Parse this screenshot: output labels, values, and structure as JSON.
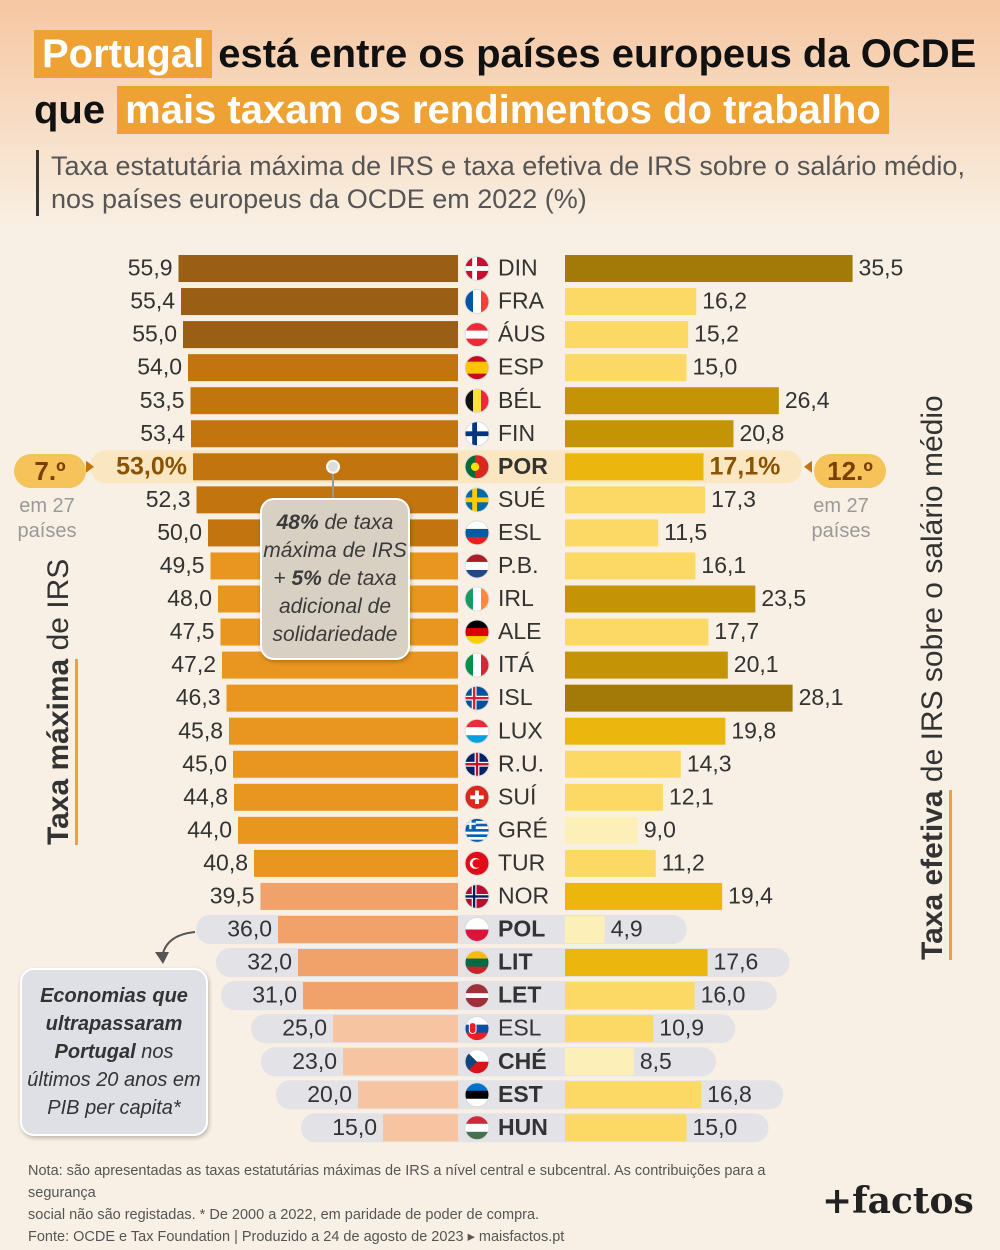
{
  "header": {
    "title_highlight_1": "Portugal",
    "title_rest_1": "está entre os países europeus da OCDE",
    "title_start_2": "que",
    "title_highlight_2": "mais taxam os rendimentos do trabalho",
    "subtitle_line1": "Taxa estatutária máxima de IRS e taxa efetiva de IRS sobre o salário médio,",
    "subtitle_line2": "nos países europeus da OCDE em 2022 (%)"
  },
  "axis_labels": {
    "left_bold": "Taxa máxima",
    "left_rest": " de IRS",
    "right_bold": "Taxa efetiva",
    "right_rest": " de IRS sobre o salário médio"
  },
  "rank": {
    "left": "7.º",
    "right": "12.º",
    "caption_line1": "em 27",
    "caption_line2": "países"
  },
  "annotation": {
    "bold1": "48%",
    "text1": " de taxa máxima de IRS + ",
    "bold2": "5%",
    "text2": " de taxa adicional de solidariedade"
  },
  "callout": {
    "bold": "Economias que ultrapassaram Portugal",
    "rest": " nos últimos 20 anos em PIB per capita*"
  },
  "footnote": {
    "line1": "Nota: são apresentadas as taxas estatutárias máximas de IRS a nível central e subcentral. As contribuições para a segurança",
    "line2": "social não são registadas. * De 2000 a 2022, em paridade de poder de compra.",
    "line3": "Fonte: OCDE e Tax Foundation  |  Produzido a 24 de agosto de 2023  ▸ maisfactos.pt"
  },
  "brand": "+factos",
  "colors": {
    "accent": "#eea233",
    "left_dark": "#9a5e14",
    "left_mid": "#c2750f",
    "left_orange": "#e8961f",
    "left_salmon": "#f0a26a",
    "left_light": "#f6c4a0",
    "right_dark": "#a37a08",
    "right_mid": "#c49306",
    "right_gold": "#ebb70e",
    "right_yellow": "#fbd964",
    "right_pale": "#fdefb8",
    "highlight_row": "#fbe6c2",
    "grey_pill": "#e2e2e7"
  },
  "chart_data": {
    "type": "bar",
    "orientation": "horizontal",
    "layout": "back-to-back",
    "categories": [
      "DIN",
      "FRA",
      "ÁUS",
      "ESP",
      "BÉL",
      "FIN",
      "POR",
      "SUÉ",
      "ESL",
      "P.B.",
      "IRL",
      "ALE",
      "ITÁ",
      "ISL",
      "LUX",
      "R.U.",
      "SUÍ",
      "GRÉ",
      "TUR",
      "NOR",
      "POL",
      "LIT",
      "LET",
      "ESL",
      "CHÉ",
      "EST",
      "HUN"
    ],
    "flags": [
      "denmark-flag-icon",
      "france-flag-icon",
      "austria-flag-icon",
      "spain-flag-icon",
      "belgium-flag-icon",
      "finland-flag-icon",
      "portugal-flag-icon",
      "sweden-flag-icon",
      "slovenia-flag-icon",
      "netherlands-flag-icon",
      "ireland-flag-icon",
      "germany-flag-icon",
      "italy-flag-icon",
      "iceland-flag-icon",
      "luxembourg-flag-icon",
      "uk-flag-icon",
      "switzerland-flag-icon",
      "greece-flag-icon",
      "turkey-flag-icon",
      "norway-flag-icon",
      "poland-flag-icon",
      "lithuania-flag-icon",
      "latvia-flag-icon",
      "slovakia-flag-icon",
      "czechia-flag-icon",
      "estonia-flag-icon",
      "hungary-flag-icon"
    ],
    "series": [
      {
        "name": "Taxa máxima de IRS",
        "values": [
          55.9,
          55.4,
          55.0,
          54.0,
          53.5,
          53.4,
          53.0,
          52.3,
          50.0,
          49.5,
          48.0,
          47.5,
          47.2,
          46.3,
          45.8,
          45.0,
          44.8,
          44.0,
          40.8,
          39.5,
          36.0,
          32.0,
          31.0,
          25.0,
          23.0,
          20.0,
          15.0
        ],
        "labels": [
          "55,9",
          "55,4",
          "55,0",
          "54,0",
          "53,5",
          "53,4",
          "53,0%",
          "52,3",
          "50,0",
          "49,5",
          "48,0",
          "47,5",
          "47,2",
          "46,3",
          "45,8",
          "45,0",
          "44,8",
          "44,0",
          "40,8",
          "39,5",
          "36,0",
          "32,0",
          "31,0",
          "25,0",
          "23,0",
          "20,0",
          "15,0"
        ],
        "colors": [
          "#9a5e14",
          "#9a5e14",
          "#9a5e14",
          "#c2750f",
          "#c2750f",
          "#c2750f",
          "#c2750f",
          "#c2750f",
          "#c2750f",
          "#e8961f",
          "#e8961f",
          "#e8961f",
          "#e8961f",
          "#e8961f",
          "#e8961f",
          "#e8961f",
          "#e8961f",
          "#e8961f",
          "#e8961f",
          "#f0a26a",
          "#f0a26a",
          "#f0a26a",
          "#f0a26a",
          "#f6c4a0",
          "#f6c4a0",
          "#f6c4a0",
          "#f6c4a0"
        ]
      },
      {
        "name": "Taxa efetiva de IRS sobre o salário médio",
        "values": [
          35.5,
          16.2,
          15.2,
          15.0,
          26.4,
          20.8,
          17.1,
          17.3,
          11.5,
          16.1,
          23.5,
          17.7,
          20.1,
          28.1,
          19.8,
          14.3,
          12.1,
          9.0,
          11.2,
          19.4,
          4.9,
          17.6,
          16.0,
          10.9,
          8.5,
          16.8,
          15.0
        ],
        "labels": [
          "35,5",
          "16,2",
          "15,2",
          "15,0",
          "26,4",
          "20,8",
          "17,1%",
          "17,3",
          "11,5",
          "16,1",
          "23,5",
          "17,7",
          "20,1",
          "28,1",
          "19,8",
          "14,3",
          "12,1",
          "9,0",
          "11,2",
          "19,4",
          "4,9",
          "17,6",
          "16,0",
          "10,9",
          "8,5",
          "16,8",
          "15,0"
        ],
        "colors": [
          "#a37a08",
          "#fbd964",
          "#fbd964",
          "#fbd964",
          "#c49306",
          "#c49306",
          "#ebb70e",
          "#fbd964",
          "#fbd964",
          "#fbd964",
          "#c49306",
          "#fbd964",
          "#c49306",
          "#a37a08",
          "#ebb70e",
          "#fbd964",
          "#fbd964",
          "#fdefb8",
          "#fbd964",
          "#ebb70e",
          "#fdefb8",
          "#ebb70e",
          "#fbd964",
          "#fbd964",
          "#fdefb8",
          "#fbd964",
          "#fbd964"
        ]
      }
    ],
    "highlight_category": "POR",
    "grey_pill_categories": [
      "POL",
      "LIT",
      "LET",
      "ESL",
      "CHÉ",
      "EST",
      "HUN"
    ],
    "bold_categories": [
      "POR",
      "POL",
      "LIT",
      "LET",
      "CHÉ",
      "EST",
      "HUN"
    ]
  }
}
